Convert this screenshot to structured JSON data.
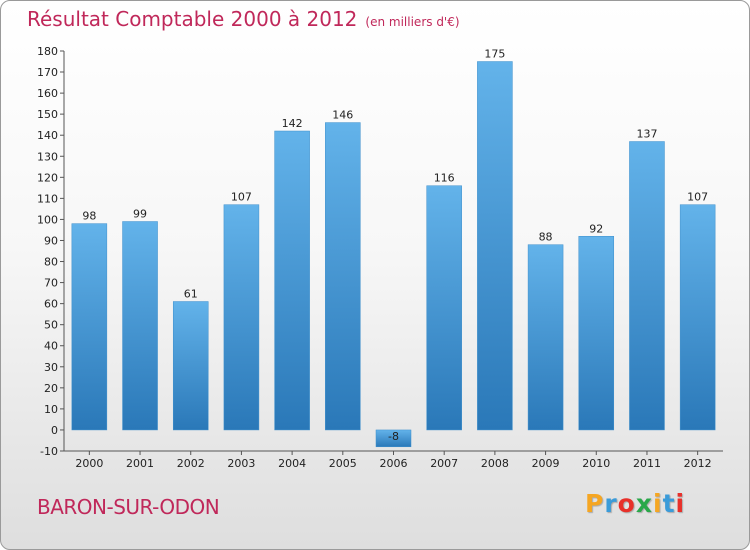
{
  "chart_data": {
    "type": "bar",
    "title": "Résultat Comptable 2000 à 2012",
    "subtitle": "(en milliers d'€)",
    "categories": [
      "2000",
      "2001",
      "2002",
      "2003",
      "2004",
      "2005",
      "2006",
      "2007",
      "2008",
      "2009",
      "2010",
      "2011",
      "2012"
    ],
    "values": [
      98,
      99,
      61,
      107,
      142,
      146,
      -8,
      116,
      175,
      88,
      92,
      137,
      107
    ],
    "ylim": [
      -10,
      180
    ],
    "yticks": [
      -10,
      0,
      10,
      20,
      30,
      40,
      50,
      60,
      70,
      80,
      90,
      100,
      110,
      120,
      130,
      140,
      150,
      160,
      170,
      180
    ],
    "grid": false,
    "xlabel": "",
    "ylabel": ""
  },
  "place": "BARON-SUR-ODON",
  "logo": {
    "letters": [
      "P",
      "r",
      "o",
      "x",
      "i",
      "t",
      "i"
    ],
    "colors": [
      "#f5a623",
      "#3a9bd9",
      "#e8302a",
      "#2aa84a",
      "#f5a623",
      "#3a9bd9",
      "#e8302a"
    ]
  },
  "colors": {
    "bar_light": "#63b3ea",
    "bar_dark": "#2a78b8",
    "title": "#c0285a"
  }
}
